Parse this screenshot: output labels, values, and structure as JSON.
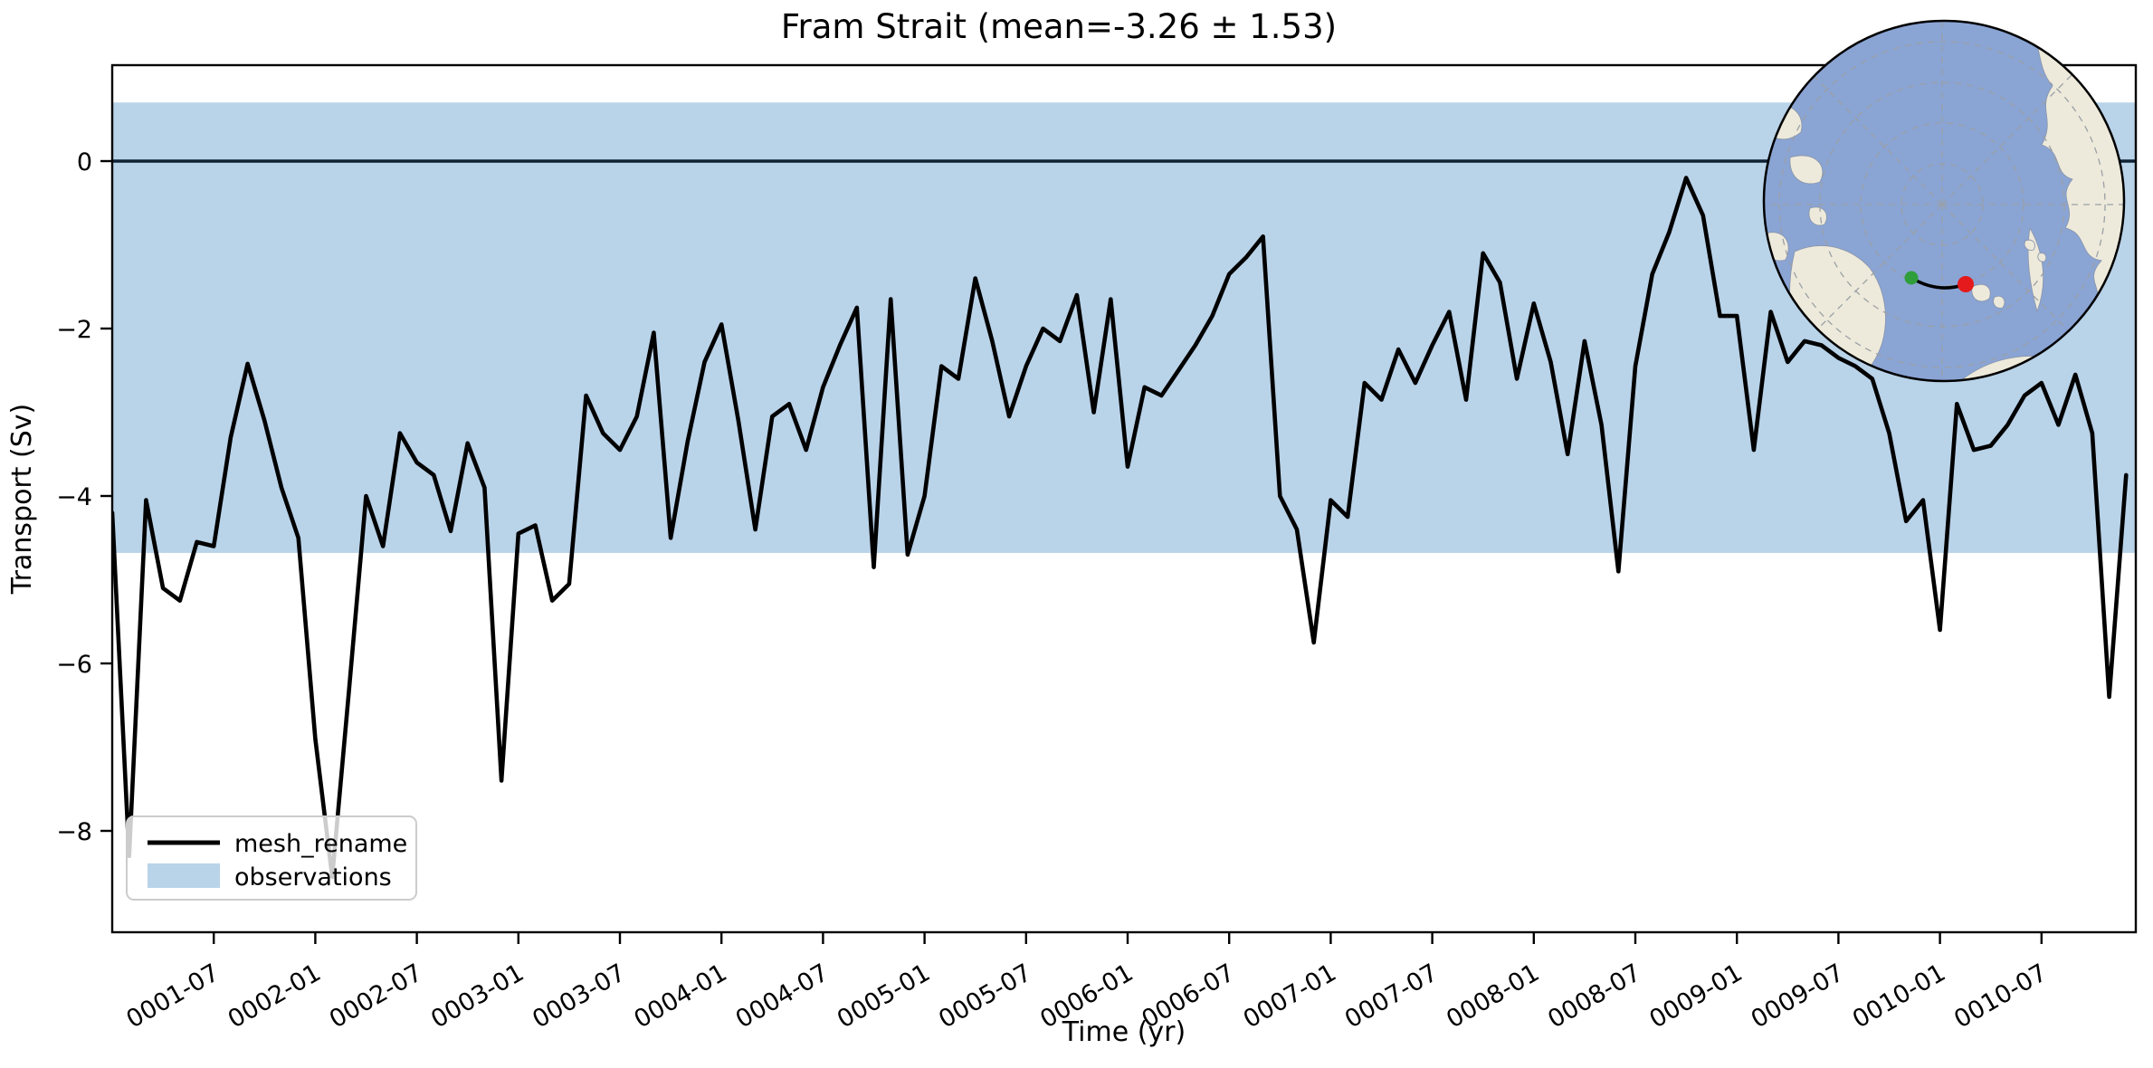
{
  "chart_data": {
    "type": "line",
    "title": "Fram Strait (mean=-3.26 ± 1.53)",
    "xlabel": "Time (yr)",
    "ylabel": "Transport (Sv)",
    "mean": -3.26,
    "std": 1.53,
    "x_start": "0001-01",
    "x_frequency": "monthly",
    "n_points": 120,
    "ylim": [
      -9.2,
      1.15
    ],
    "ytick_labels": [
      "0",
      "−2",
      "−4",
      "−6",
      "−8"
    ],
    "ytick_values": [
      0,
      -2,
      -4,
      -6,
      -8
    ],
    "xtick_labels": [
      "0001-07",
      "0002-01",
      "0002-07",
      "0003-01",
      "0003-07",
      "0004-01",
      "0004-07",
      "0005-01",
      "0005-07",
      "0006-01",
      "0006-07",
      "0007-01",
      "0007-07",
      "0008-01",
      "0008-07",
      "0009-01",
      "0009-07",
      "0010-01",
      "0010-07"
    ],
    "xtick_month_index": [
      6,
      12,
      18,
      24,
      30,
      36,
      42,
      48,
      54,
      60,
      66,
      72,
      78,
      84,
      90,
      96,
      102,
      108,
      114
    ],
    "grid": false,
    "legend_position": "lower left",
    "zero_line": 0,
    "series": [
      {
        "name": "mesh_rename",
        "color": "#000000",
        "values": [
          -4.2,
          -8.3,
          -4.05,
          -5.1,
          -5.25,
          -4.55,
          -4.6,
          -3.3,
          -2.42,
          -3.1,
          -3.9,
          -4.5,
          -6.9,
          -8.55,
          -6.3,
          -4.0,
          -4.6,
          -3.25,
          -3.6,
          -3.75,
          -4.42,
          -3.37,
          -3.9,
          -7.4,
          -4.45,
          -4.35,
          -5.25,
          -5.05,
          -2.8,
          -3.25,
          -3.45,
          -3.05,
          -2.05,
          -4.5,
          -3.35,
          -2.4,
          -1.95,
          -3.1,
          -4.4,
          -3.05,
          -2.9,
          -3.45,
          -2.7,
          -2.2,
          -1.75,
          -4.85,
          -1.65,
          -4.7,
          -4.0,
          -2.45,
          -2.6,
          -1.4,
          -2.15,
          -3.05,
          -2.45,
          -2.0,
          -2.15,
          -1.6,
          -3.0,
          -1.65,
          -3.65,
          -2.7,
          -2.8,
          -2.5,
          -2.2,
          -1.85,
          -1.35,
          -1.15,
          -0.9,
          -4.0,
          -4.4,
          -5.75,
          -4.05,
          -4.25,
          -2.65,
          -2.85,
          -2.25,
          -2.65,
          -2.2,
          -1.8,
          -2.85,
          -1.1,
          -1.45,
          -2.6,
          -1.7,
          -2.4,
          -3.5,
          -2.15,
          -3.15,
          -4.9,
          -2.45,
          -1.35,
          -0.85,
          -0.2,
          -0.65,
          -1.85,
          -1.85,
          -3.45,
          -1.8,
          -2.4,
          -2.15,
          -2.2,
          -2.35,
          -2.45,
          -2.6,
          -3.25,
          -4.3,
          -4.05,
          -5.6,
          -2.9,
          -3.45,
          -3.4,
          -3.15,
          -2.8,
          -2.65,
          -3.15,
          -2.55,
          -3.25,
          -6.4,
          -3.75
        ]
      }
    ],
    "band": {
      "label": "observations",
      "color": "#b9d3e9",
      "upper": 0.7,
      "lower": -4.68
    }
  },
  "inset_map": {
    "description": "polar-stereographic locator globe",
    "ocean_color": "#8aa4d4",
    "land_color": "#eeeadb",
    "graticule_color": "#9aa0a6",
    "start_marker_color": "#2f9e3b",
    "end_marker_color": "#e41a1c",
    "section_line_color": "#000000"
  }
}
